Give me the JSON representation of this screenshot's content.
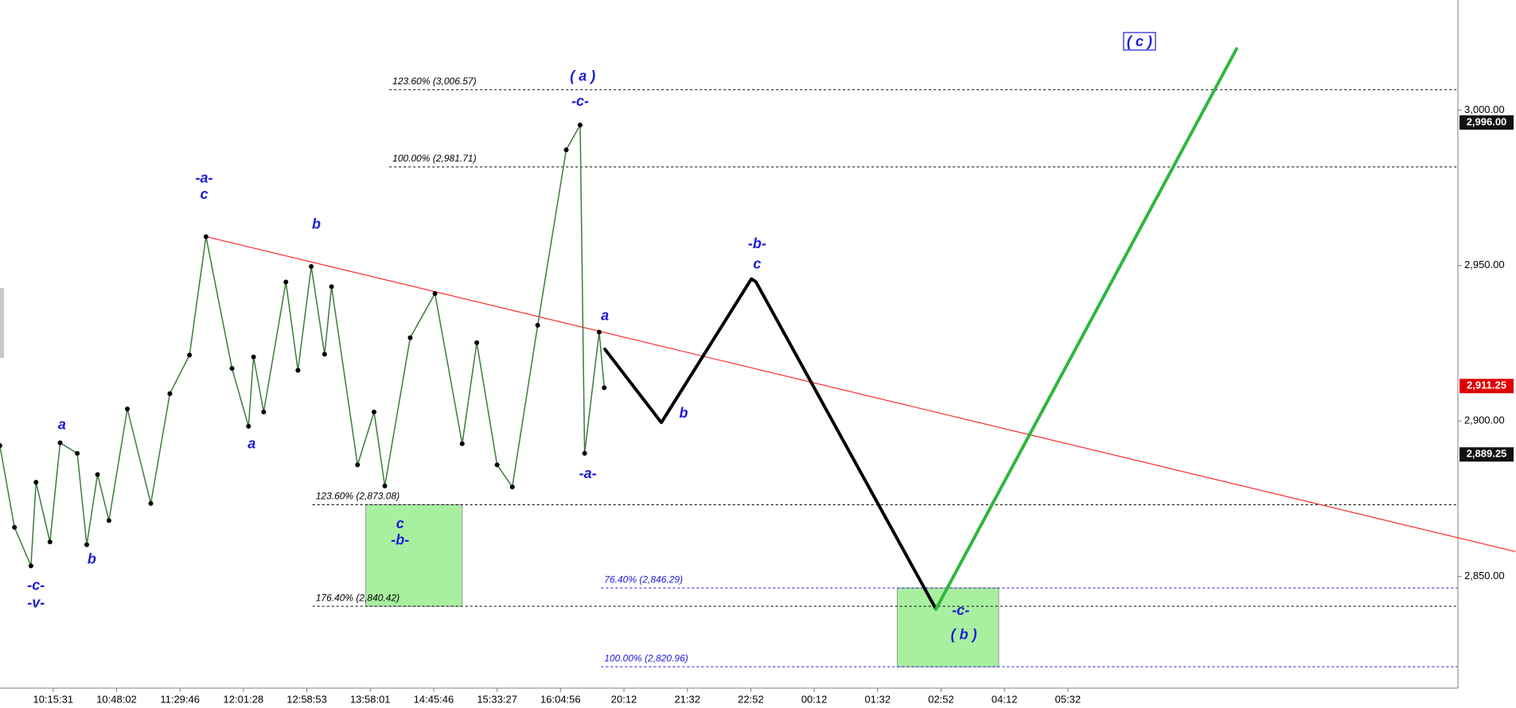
{
  "chart_data": {
    "type": "line",
    "xlim": [
      -0.838,
      22.15
    ],
    "ylim": [
      2814.1,
      3035.4
    ],
    "xticks": [
      {
        "value": 0,
        "label": "10:15:31"
      },
      {
        "value": 1,
        "label": "10:48:02"
      },
      {
        "value": 2,
        "label": "11:29:46"
      },
      {
        "value": 3,
        "label": "12:01:28"
      },
      {
        "value": 4,
        "label": "12:58:53"
      },
      {
        "value": 5,
        "label": "13:58:01"
      },
      {
        "value": 6,
        "label": "14:45:46"
      },
      {
        "value": 7,
        "label": "15:33:27"
      },
      {
        "value": 8,
        "label": "16:04:56"
      },
      {
        "value": 9,
        "label": "20:12"
      },
      {
        "value": 10,
        "label": "21:32"
      },
      {
        "value": 11,
        "label": "22:52"
      },
      {
        "value": 12,
        "label": "00:12"
      },
      {
        "value": 13,
        "label": "01:32"
      },
      {
        "value": 14,
        "label": "02:52"
      },
      {
        "value": 15,
        "label": "04:12"
      },
      {
        "value": 16,
        "label": "05:32"
      }
    ],
    "yticks": [
      {
        "value": 2850,
        "label": "2,850.00"
      },
      {
        "value": 2900,
        "label": "2,900.00"
      },
      {
        "value": 2950,
        "label": "2,950.00"
      },
      {
        "value": 3000,
        "label": "3,000.00"
      }
    ],
    "series": [
      {
        "color": "#3d7a3a",
        "width": 1.5,
        "markers": true,
        "x": [
          -0.84,
          -0.61,
          -0.35,
          -0.27,
          -0.05,
          0.11,
          0.38,
          0.53,
          0.7,
          0.88,
          1.17,
          1.54,
          1.84,
          2.15,
          2.41,
          2.82,
          3.08,
          3.16,
          3.32,
          3.67,
          3.86,
          4.07,
          4.28,
          4.39,
          4.8,
          5.06,
          5.23,
          5.63,
          6.02,
          6.45,
          6.68,
          7.0,
          7.24,
          7.64,
          8.09,
          8.31,
          8.38,
          8.61,
          8.69
        ],
        "values": [
          2892.1,
          2865.8,
          2853.4,
          2880.3,
          2861.1,
          2893.0,
          2889.6,
          2860.2,
          2882.8,
          2868.0,
          2903.9,
          2873.5,
          2908.8,
          2921.2,
          2959.3,
          2916.9,
          2898.3,
          2920.6,
          2902.9,
          2944.7,
          2916.3,
          2949.7,
          2921.5,
          2943.2,
          2885.9,
          2902.9,
          2879.1,
          2926.8,
          2941.0,
          2892.7,
          2925.2,
          2885.9,
          2878.8,
          2930.8,
          2987.2,
          2995.2,
          2889.6,
          2928.6,
          2910.7
        ]
      },
      {
        "color": "#000000",
        "width": 4,
        "markers": false,
        "x": [
          8.7,
          9.59,
          11.01,
          11.08,
          13.92
        ],
        "values": [
          2923.1,
          2899.5,
          2945.7,
          2944.8,
          2839.5
        ]
      },
      {
        "color": "#2db83d",
        "width": 4,
        "markers": false,
        "x": [
          13.92,
          18.66
        ],
        "values": [
          2839.5,
          3019.7
        ]
      }
    ],
    "trendline": {
      "color": "#ff2a2a",
      "x": [
        2.41,
        23.06
      ],
      "values": [
        2959.3,
        2858.0
      ]
    },
    "levels": [
      {
        "label": "123.60% (3,006.57)",
        "value": 3006.57,
        "x_start": 5.3,
        "color": "#000000"
      },
      {
        "label": "100.00% (2,981.71)",
        "value": 2981.71,
        "x_start": 5.3,
        "color": "#000000"
      },
      {
        "label": "123.60% (2,873.08)",
        "value": 2873.08,
        "x_start": 4.09,
        "color": "#000000"
      },
      {
        "label": "176.40% (2,840.42)",
        "value": 2840.42,
        "x_start": 4.09,
        "color": "#000000"
      },
      {
        "label": "76.40% (2,846.29)",
        "value": 2846.29,
        "x_start": 8.64,
        "color": "#1c1cd6"
      },
      {
        "label": "100.00% (2,820.96)",
        "value": 2820.96,
        "x_start": 8.64,
        "color": "#1c1cd6"
      }
    ],
    "zones": [
      {
        "x": [
          4.93,
          6.45
        ],
        "y": [
          2840.42,
          2873.08
        ],
        "color": "#a8f0a0"
      },
      {
        "x": [
          13.31,
          14.91
        ],
        "y": [
          2820.96,
          2846.29
        ],
        "color": "#a8f0a0"
      }
    ],
    "wave_labels": [
      {
        "text": "-c-",
        "x": -0.27,
        "y": 2846.9
      },
      {
        "text": "-v-",
        "x": -0.27,
        "y": 2841.3
      },
      {
        "text": "a",
        "x": 0.14,
        "y": 2898.6
      },
      {
        "text": "b",
        "x": 0.61,
        "y": 2855.3
      },
      {
        "text": "-a-",
        "x": 2.38,
        "y": 2977.9
      },
      {
        "text": "c",
        "x": 2.38,
        "y": 2972.6
      },
      {
        "text": "b",
        "x": 4.15,
        "y": 2963.0
      },
      {
        "text": "a",
        "x": 3.13,
        "y": 2892.4
      },
      {
        "text": "c",
        "x": 5.47,
        "y": 2866.7
      },
      {
        "text": "-b-",
        "x": 5.47,
        "y": 2861.5
      },
      {
        "text": "( a )",
        "x": 8.35,
        "y": 3010.7
      },
      {
        "text": "-c-",
        "x": 8.31,
        "y": 3002.6
      },
      {
        "text": "a",
        "x": 8.7,
        "y": 2933.6
      },
      {
        "text": "-a-",
        "x": 8.43,
        "y": 2882.8
      },
      {
        "text": "b",
        "x": 9.94,
        "y": 2902.3
      },
      {
        "text": "-b-",
        "x": 11.1,
        "y": 2956.8
      },
      {
        "text": "c",
        "x": 11.1,
        "y": 2950.3
      },
      {
        "text": "-c-",
        "x": 14.31,
        "y": 2838.9
      },
      {
        "text": "( b )",
        "x": 14.36,
        "y": 2831.1
      },
      {
        "text": "( c )",
        "x": 17.13,
        "y": 3021.8,
        "boxed": true
      }
    ],
    "price_tags": [
      {
        "value": 2996.0,
        "label": "2,996.00",
        "color": "#111111"
      },
      {
        "value": 2911.25,
        "label": "2,911.25",
        "color": "#e00000"
      },
      {
        "value": 2889.25,
        "label": "2,889.25",
        "color": "#111111"
      }
    ]
  }
}
